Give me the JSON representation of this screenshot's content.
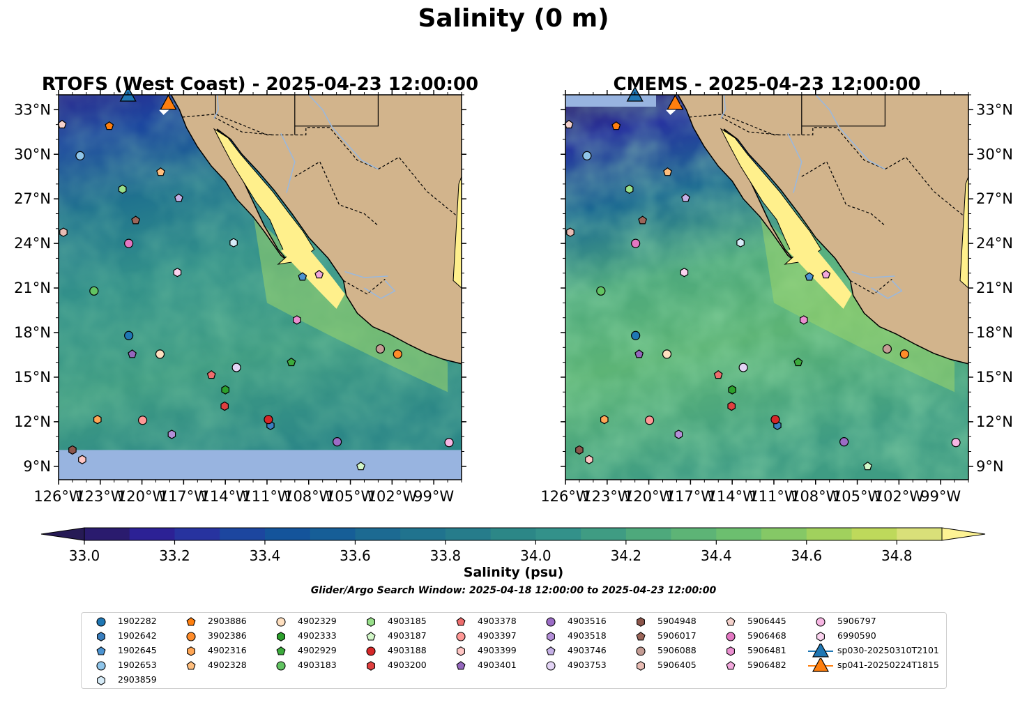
{
  "suptitle": "Salinity (0 m)",
  "colors": {
    "land": "#d2b48c",
    "gulf": "#fff08c",
    "nodata": "#98b4e0",
    "river": "#9bb8dc",
    "water_low": "#2b1a6b",
    "water_high": "#fdf394"
  },
  "colorbar": {
    "label": "Salinity (psu)",
    "ticks": [
      "33.0",
      "33.2",
      "33.4",
      "33.6",
      "33.8",
      "34.0",
      "34.2",
      "34.4",
      "34.6",
      "34.8"
    ],
    "range": [
      32.9,
      35.0
    ],
    "step": 0.1,
    "colors": [
      "#2a1b6e",
      "#2c2195",
      "#27339f",
      "#1c469f",
      "#14549b",
      "#165e97",
      "#1c6a92",
      "#20738e",
      "#267c8b",
      "#2c8787",
      "#33918a",
      "#3f9c83",
      "#4ea97c",
      "#5db476",
      "#6cbf6f",
      "#85c866",
      "#a1d15d",
      "#bed95b",
      "#d9e079"
    ],
    "extend_low_color": "#261a55",
    "extend_high_color": "#fdf394"
  },
  "search_window": "Glider/Argo Search Window: 2025-04-18 12:00:00 to 2025-04-23 12:00:00",
  "chart_data": [
    {
      "type": "heatmap",
      "title": "RTOFS (West Coast) - 2025-04-23 12:00:00",
      "x_ticks": [
        "126°W",
        "123°W",
        "120°W",
        "117°W",
        "114°W",
        "111°W",
        "108°W",
        "105°W",
        "102°W",
        "99°W"
      ],
      "y_ticks": [
        "9°N",
        "12°N",
        "15°N",
        "18°N",
        "21°N",
        "24°N",
        "27°N",
        "30°N",
        "33°N"
      ],
      "xlim": [
        -126,
        -97
      ],
      "ylim": [
        8.1,
        34.0
      ],
      "no_data_below_lat": 10.1,
      "grid": false
    },
    {
      "type": "heatmap",
      "title": "CMEMS - 2025-04-23 12:00:00",
      "x_ticks": [
        "126°W",
        "123°W",
        "120°W",
        "117°W",
        "114°W",
        "111°W",
        "108°W",
        "105°W",
        "102°W",
        "99°W"
      ],
      "y_ticks": [
        "9°N",
        "12°N",
        "15°N",
        "18°N",
        "21°N",
        "24°N",
        "27°N",
        "30°N",
        "33°N"
      ],
      "xlim": [
        -126,
        -97
      ],
      "ylim": [
        8.1,
        34.0
      ],
      "no_data_above_lat": 33.2,
      "grid": false
    }
  ],
  "floats": [
    {
      "id": "1902282",
      "color": "#1f77b4",
      "marker": "circle",
      "lon": -120.95,
      "lat": 17.8
    },
    {
      "id": "1902642",
      "color": "#3a7fbf",
      "marker": "hexagon",
      "lon": -110.75,
      "lat": 11.75
    },
    {
      "id": "1902645",
      "color": "#4b93d1",
      "marker": "pentagon",
      "lon": -108.45,
      "lat": 21.75
    },
    {
      "id": "1902653",
      "color": "#8fc5ea",
      "marker": "circle",
      "lon": -124.45,
      "lat": 29.9
    },
    {
      "id": "2903859",
      "color": "#d6ebf7",
      "marker": "hexagon",
      "lon": -113.4,
      "lat": 24.05
    },
    {
      "id": "2903886",
      "color": "#ff7f0e",
      "marker": "pentagon",
      "lon": -122.35,
      "lat": 31.9
    },
    {
      "id": "3902386",
      "color": "#ff8c2a",
      "marker": "circle",
      "lon": -101.6,
      "lat": 16.55
    },
    {
      "id": "4902316",
      "color": "#ffa655",
      "marker": "hexagon",
      "lon": -123.2,
      "lat": 12.15
    },
    {
      "id": "4902328",
      "color": "#ffbe7d",
      "marker": "pentagon",
      "lon": -118.65,
      "lat": 28.8
    },
    {
      "id": "4902329",
      "color": "#ffe0c0",
      "marker": "circle",
      "lon": -118.7,
      "lat": 16.55
    },
    {
      "id": "4902333",
      "color": "#2ca02c",
      "marker": "hexagon",
      "lon": -114.0,
      "lat": 14.15
    },
    {
      "id": "4902929",
      "color": "#3cab3c",
      "marker": "pentagon",
      "lon": -109.25,
      "lat": 16.0
    },
    {
      "id": "4903183",
      "color": "#62c462",
      "marker": "circle",
      "lon": -123.45,
      "lat": 20.8
    },
    {
      "id": "4903185",
      "color": "#98df8a",
      "marker": "hexagon",
      "lon": -121.4,
      "lat": 27.65
    },
    {
      "id": "4903187",
      "color": "#d2f7c8",
      "marker": "pentagon",
      "lon": -104.25,
      "lat": 9.0
    },
    {
      "id": "4903188",
      "color": "#d62728",
      "marker": "circle",
      "lon": -110.9,
      "lat": 12.15
    },
    {
      "id": "4903200",
      "color": "#e04040",
      "marker": "hexagon",
      "lon": -114.05,
      "lat": 13.05
    },
    {
      "id": "4903378",
      "color": "#ee6d6d",
      "marker": "pentagon",
      "lon": -115.0,
      "lat": 15.15
    },
    {
      "id": "4903397",
      "color": "#ff9896",
      "marker": "circle",
      "lon": -119.95,
      "lat": 12.1
    },
    {
      "id": "4903399",
      "color": "#ffc6c4",
      "marker": "hexagon",
      "lon": -124.3,
      "lat": 9.45
    },
    {
      "id": "4903401",
      "color": "#9467bd",
      "marker": "pentagon",
      "lon": -120.7,
      "lat": 16.55
    },
    {
      "id": "4903516",
      "color": "#9b6cc6",
      "marker": "circle",
      "lon": -105.95,
      "lat": 10.65
    },
    {
      "id": "4903518",
      "color": "#b48fd8",
      "marker": "hexagon",
      "lon": -117.85,
      "lat": 11.15
    },
    {
      "id": "4903746",
      "color": "#c5b0e6",
      "marker": "pentagon",
      "lon": -117.35,
      "lat": 27.05
    },
    {
      "id": "4903753",
      "color": "#e3d4f5",
      "marker": "circle",
      "lon": -113.2,
      "lat": 15.65
    },
    {
      "id": "5904948",
      "color": "#8c564b",
      "marker": "hexagon",
      "lon": -125.0,
      "lat": 10.1
    },
    {
      "id": "5906017",
      "color": "#9c665a",
      "marker": "pentagon",
      "lon": -120.45,
      "lat": 25.55
    },
    {
      "id": "5906088",
      "color": "#c49c94",
      "marker": "circle",
      "lon": -102.85,
      "lat": 16.9
    },
    {
      "id": "5906405",
      "color": "#e8bcb4",
      "marker": "hexagon",
      "lon": -125.65,
      "lat": 24.75
    },
    {
      "id": "5906445",
      "color": "#f5d2cc",
      "marker": "pentagon",
      "lon": -125.75,
      "lat": 32.0
    },
    {
      "id": "5906468",
      "color": "#e377c2",
      "marker": "circle",
      "lon": -120.95,
      "lat": 24.0
    },
    {
      "id": "5906481",
      "color": "#ea8fd0",
      "marker": "hexagon",
      "lon": -108.85,
      "lat": 18.85
    },
    {
      "id": "5906482",
      "color": "#f2a8dc",
      "marker": "pentagon",
      "lon": -107.25,
      "lat": 21.9
    },
    {
      "id": "5906797",
      "color": "#f7b6e3",
      "marker": "circle",
      "lon": -97.9,
      "lat": 10.6
    },
    {
      "id": "6990590",
      "color": "#fbd3ef",
      "marker": "hexagon",
      "lon": -117.45,
      "lat": 22.05
    }
  ],
  "gliders": [
    {
      "id": "sp030-20250310T2101",
      "color": "#1f77b4",
      "marker": "triangle",
      "lon": -121.0,
      "lat": 34.0
    },
    {
      "id": "sp041-20250224T1815",
      "color": "#ff7f0e",
      "marker": "triangle",
      "lon": -118.1,
      "lat": 33.45
    }
  ]
}
